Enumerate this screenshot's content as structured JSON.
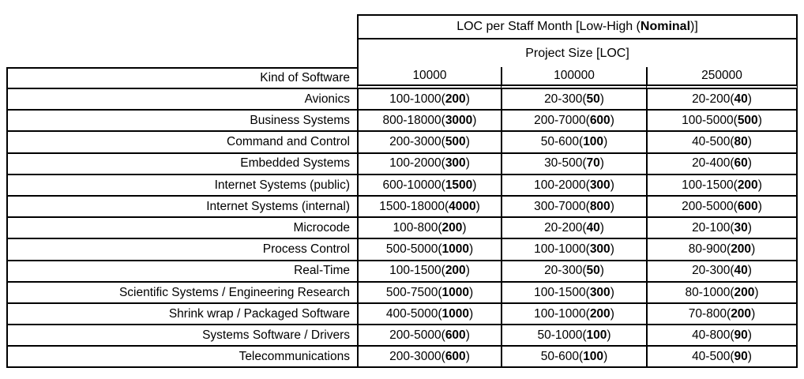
{
  "table": {
    "title": {
      "prefix": "LOC per Staff Month [Low-High (",
      "bold": "Nominal",
      "suffix": ")]"
    },
    "subtitle": "Project Size [LOC]",
    "row_header": "Kind of Software",
    "col_headers": [
      "10000",
      "100000",
      "250000"
    ],
    "rows": [
      {
        "label": "Avionics",
        "cells": [
          {
            "range": "100-1000",
            "nominal": "200"
          },
          {
            "range": "20-300",
            "nominal": "50"
          },
          {
            "range": "20-200",
            "nominal": "40"
          }
        ]
      },
      {
        "label": "Business Systems",
        "cells": [
          {
            "range": "800-18000",
            "nominal": "3000"
          },
          {
            "range": "200-7000",
            "nominal": "600"
          },
          {
            "range": "100-5000",
            "nominal": "500"
          }
        ]
      },
      {
        "label": "Command and Control",
        "cells": [
          {
            "range": "200-3000",
            "nominal": "500"
          },
          {
            "range": "50-600",
            "nominal": "100"
          },
          {
            "range": "40-500",
            "nominal": "80"
          }
        ]
      },
      {
        "label": "Embedded Systems",
        "cells": [
          {
            "range": "100-2000",
            "nominal": "300"
          },
          {
            "range": "30-500",
            "nominal": "70"
          },
          {
            "range": "20-400",
            "nominal": "60"
          }
        ]
      },
      {
        "label": "Internet Systems (public)",
        "cells": [
          {
            "range": "600-10000",
            "nominal": "1500"
          },
          {
            "range": "100-2000",
            "nominal": "300"
          },
          {
            "range": "100-1500",
            "nominal": "200"
          }
        ]
      },
      {
        "label": "Internet Systems (internal)",
        "cells": [
          {
            "range": "1500-18000",
            "nominal": "4000"
          },
          {
            "range": "300-7000",
            "nominal": "800"
          },
          {
            "range": "200-5000",
            "nominal": "600"
          }
        ]
      },
      {
        "label": "Microcode",
        "cells": [
          {
            "range": "100-800",
            "nominal": "200"
          },
          {
            "range": "20-200",
            "nominal": "40"
          },
          {
            "range": "20-100",
            "nominal": "30"
          }
        ]
      },
      {
        "label": "Process Control",
        "cells": [
          {
            "range": "500-5000",
            "nominal": "1000"
          },
          {
            "range": "100-1000",
            "nominal": "300"
          },
          {
            "range": "80-900",
            "nominal": "200"
          }
        ]
      },
      {
        "label": "Real-Time",
        "cells": [
          {
            "range": "100-1500",
            "nominal": "200"
          },
          {
            "range": "20-300",
            "nominal": "50"
          },
          {
            "range": "20-300",
            "nominal": "40"
          }
        ]
      },
      {
        "label": "Scientific Systems / Engineering Research",
        "cells": [
          {
            "range": "500-7500",
            "nominal": "1000"
          },
          {
            "range": "100-1500",
            "nominal": "300"
          },
          {
            "range": "80-1000",
            "nominal": "200"
          }
        ]
      },
      {
        "label": "Shrink wrap / Packaged Software",
        "cells": [
          {
            "range": "400-5000",
            "nominal": "1000"
          },
          {
            "range": "100-1000",
            "nominal": "200"
          },
          {
            "range": "70-800",
            "nominal": "200"
          }
        ]
      },
      {
        "label": "Systems Software / Drivers",
        "cells": [
          {
            "range": "200-5000",
            "nominal": "600"
          },
          {
            "range": "50-1000",
            "nominal": "100"
          },
          {
            "range": "40-800",
            "nominal": "90"
          }
        ]
      },
      {
        "label": "Telecommunications",
        "cells": [
          {
            "range": "200-3000",
            "nominal": "600"
          },
          {
            "range": "50-600",
            "nominal": "100"
          },
          {
            "range": "40-500",
            "nominal": "90"
          }
        ]
      }
    ]
  }
}
